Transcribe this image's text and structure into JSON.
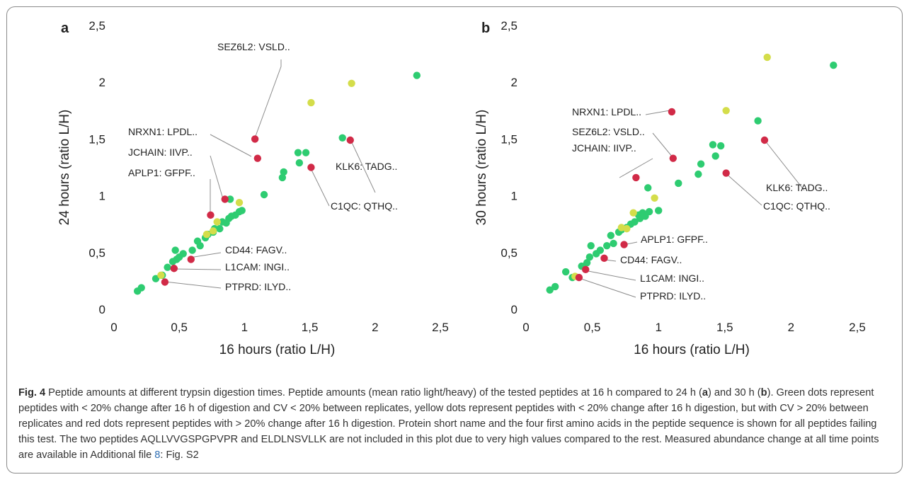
{
  "colors": {
    "green": "#2ecc71",
    "yellow": "#d4dd4a",
    "red": "#d12a47",
    "leader": "#8c8c8c"
  },
  "chart_data": [
    {
      "type": "scatter",
      "panel_letter": "a",
      "xlabel": "16 hours (ratio L/H)",
      "ylabel": "24 hours (ratio L/H)",
      "xlim": [
        0,
        2.5
      ],
      "ylim": [
        0,
        2.5
      ],
      "xticks": [
        "0",
        "0,5",
        "1",
        "1,5",
        "2",
        "2,5"
      ],
      "yticks": [
        "0",
        "0,5",
        "1",
        "1,5",
        "2",
        "2,5"
      ],
      "grid": false,
      "series": [
        {
          "color_key": "green",
          "points": [
            [
              0.18,
              0.16
            ],
            [
              0.21,
              0.19
            ],
            [
              0.32,
              0.27
            ],
            [
              0.37,
              0.3
            ],
            [
              0.41,
              0.37
            ],
            [
              0.45,
              0.42
            ],
            [
              0.48,
              0.44
            ],
            [
              0.47,
              0.52
            ],
            [
              0.5,
              0.46
            ],
            [
              0.53,
              0.49
            ],
            [
              0.6,
              0.52
            ],
            [
              0.64,
              0.6
            ],
            [
              0.66,
              0.56
            ],
            [
              0.7,
              0.63
            ],
            [
              0.72,
              0.66
            ],
            [
              0.76,
              0.68
            ],
            [
              0.77,
              0.71
            ],
            [
              0.81,
              0.71
            ],
            [
              0.83,
              0.77
            ],
            [
              0.86,
              0.76
            ],
            [
              0.88,
              0.8
            ],
            [
              0.9,
              0.82
            ],
            [
              0.93,
              0.83
            ],
            [
              0.96,
              0.86
            ],
            [
              0.89,
              0.97
            ],
            [
              0.98,
              0.87
            ],
            [
              1.15,
              1.01
            ],
            [
              1.29,
              1.16
            ],
            [
              1.3,
              1.21
            ],
            [
              1.42,
              1.29
            ],
            [
              1.41,
              1.38
            ],
            [
              1.47,
              1.38
            ],
            [
              1.75,
              1.51
            ],
            [
              2.32,
              2.06
            ]
          ]
        },
        {
          "color_key": "yellow",
          "points": [
            [
              0.36,
              0.3
            ],
            [
              0.71,
              0.66
            ],
            [
              0.76,
              0.69
            ],
            [
              0.79,
              0.77
            ],
            [
              0.96,
              0.94
            ],
            [
              1.51,
              1.82
            ],
            [
              1.82,
              1.99
            ]
          ]
        },
        {
          "color_key": "red",
          "points": [
            [
              0.39,
              0.24
            ],
            [
              0.46,
              0.36
            ],
            [
              0.59,
              0.44
            ],
            [
              0.74,
              0.83
            ],
            [
              0.85,
              0.97
            ],
            [
              1.1,
              1.33
            ],
            [
              1.08,
              1.5
            ],
            [
              1.51,
              1.25
            ],
            [
              1.81,
              1.49
            ]
          ]
        }
      ],
      "annotations": [
        {
          "text": "SEZ6L2: VSLD..",
          "point": [
            1.08,
            1.5
          ]
        },
        {
          "text": "NRXN1: LPDL..",
          "point": [
            1.1,
            1.33
          ]
        },
        {
          "text": "JCHAIN: IIVP..",
          "point": [
            0.85,
            0.97
          ]
        },
        {
          "text": "APLP1: GFPF..",
          "point": [
            0.74,
            0.83
          ]
        },
        {
          "text": "KLK6: TADG..",
          "point": [
            1.81,
            1.49
          ]
        },
        {
          "text": "C1QC: QTHQ..",
          "point": [
            1.51,
            1.25
          ]
        },
        {
          "text": "CD44: FAGV..",
          "point": [
            0.59,
            0.44
          ]
        },
        {
          "text": "L1CAM: INGI..",
          "point": [
            0.46,
            0.36
          ]
        },
        {
          "text": "PTPRD: ILYD..",
          "point": [
            0.39,
            0.24
          ]
        }
      ]
    },
    {
      "type": "scatter",
      "panel_letter": "b",
      "xlabel": "16 hours (ratio L/H)",
      "ylabel": "30 hours (ratio L/H)",
      "xlim": [
        0,
        2.5
      ],
      "ylim": [
        0,
        2.5
      ],
      "xticks": [
        "0",
        "0,5",
        "1",
        "1,5",
        "2",
        "2,5"
      ],
      "yticks": [
        "0",
        "0,5",
        "1",
        "1,5",
        "2",
        "2,5"
      ],
      "grid": false,
      "series": [
        {
          "color_key": "green",
          "points": [
            [
              0.18,
              0.17
            ],
            [
              0.22,
              0.2
            ],
            [
              0.3,
              0.33
            ],
            [
              0.35,
              0.28
            ],
            [
              0.42,
              0.38
            ],
            [
              0.46,
              0.41
            ],
            [
              0.48,
              0.46
            ],
            [
              0.49,
              0.56
            ],
            [
              0.53,
              0.49
            ],
            [
              0.56,
              0.52
            ],
            [
              0.61,
              0.56
            ],
            [
              0.64,
              0.65
            ],
            [
              0.66,
              0.58
            ],
            [
              0.7,
              0.68
            ],
            [
              0.72,
              0.7
            ],
            [
              0.76,
              0.72
            ],
            [
              0.79,
              0.75
            ],
            [
              0.82,
              0.77
            ],
            [
              0.85,
              0.83
            ],
            [
              0.86,
              0.8
            ],
            [
              0.88,
              0.85
            ],
            [
              0.9,
              0.82
            ],
            [
              0.93,
              0.86
            ],
            [
              1.0,
              0.87
            ],
            [
              0.92,
              1.07
            ],
            [
              1.15,
              1.11
            ],
            [
              1.3,
              1.19
            ],
            [
              1.32,
              1.28
            ],
            [
              1.41,
              1.45
            ],
            [
              1.43,
              1.35
            ],
            [
              1.47,
              1.44
            ],
            [
              1.75,
              1.66
            ],
            [
              2.32,
              2.15
            ]
          ]
        },
        {
          "color_key": "yellow",
          "points": [
            [
              0.37,
              0.29
            ],
            [
              0.72,
              0.72
            ],
            [
              0.76,
              0.71
            ],
            [
              0.81,
              0.85
            ],
            [
              0.97,
              0.98
            ],
            [
              1.51,
              1.75
            ],
            [
              1.82,
              2.22
            ]
          ]
        },
        {
          "color_key": "red",
          "points": [
            [
              0.4,
              0.28
            ],
            [
              0.45,
              0.35
            ],
            [
              0.59,
              0.45
            ],
            [
              0.74,
              0.57
            ],
            [
              0.83,
              1.16
            ],
            [
              1.1,
              1.74
            ],
            [
              1.11,
              1.33
            ],
            [
              1.51,
              1.2
            ],
            [
              1.8,
              1.49
            ]
          ]
        }
      ],
      "annotations": [
        {
          "text": "NRXN1: LPDL..",
          "point": [
            1.1,
            1.74
          ]
        },
        {
          "text": "SEZ6L2: VSLD..",
          "point": [
            1.11,
            1.33
          ]
        },
        {
          "text": "JCHAIN: IIVP..",
          "point": [
            0.83,
            1.16
          ]
        },
        {
          "text": "KLK6: TADG..",
          "point": [
            1.8,
            1.49
          ]
        },
        {
          "text": "C1QC: QTHQ..",
          "point": [
            1.51,
            1.2
          ]
        },
        {
          "text": "APLP1: GFPF..",
          "point": [
            0.74,
            0.57
          ]
        },
        {
          "text": "CD44: FAGV..",
          "point": [
            0.59,
            0.45
          ]
        },
        {
          "text": "L1CAM: INGI..",
          "point": [
            0.45,
            0.35
          ]
        },
        {
          "text": "PTPRD: ILYD..",
          "point": [
            0.4,
            0.28
          ]
        }
      ]
    }
  ],
  "caption": {
    "fig_label": "Fig. 4",
    "part1": "  Peptide amounts at different trypsin digestion times. Peptide amounts (mean ratio light/heavy) of the tested peptides at 16 h compared to 24 h (",
    "a": "a",
    "part2": ") and 30 h (",
    "b": "b",
    "part3": "). Green dots represent peptides with < 20% change after 16 h of digestion and CV < 20% between replicates, yellow dots represent peptides with < 20% change after 16 h digestion, but with CV > 20% between replicates and red dots represent peptides with > 20% change after 16 h digestion. Protein short name and the four first amino acids in the peptide sequence is shown for all peptides failing this test. The two peptides AQLLVVGSPGPVPR and ELDLNSVLLK are not included in this plot due to very high values compared to the rest. Measured abundance change at all time points are available in Additional file ",
    "link": "8",
    "part4": ": Fig. S2"
  }
}
